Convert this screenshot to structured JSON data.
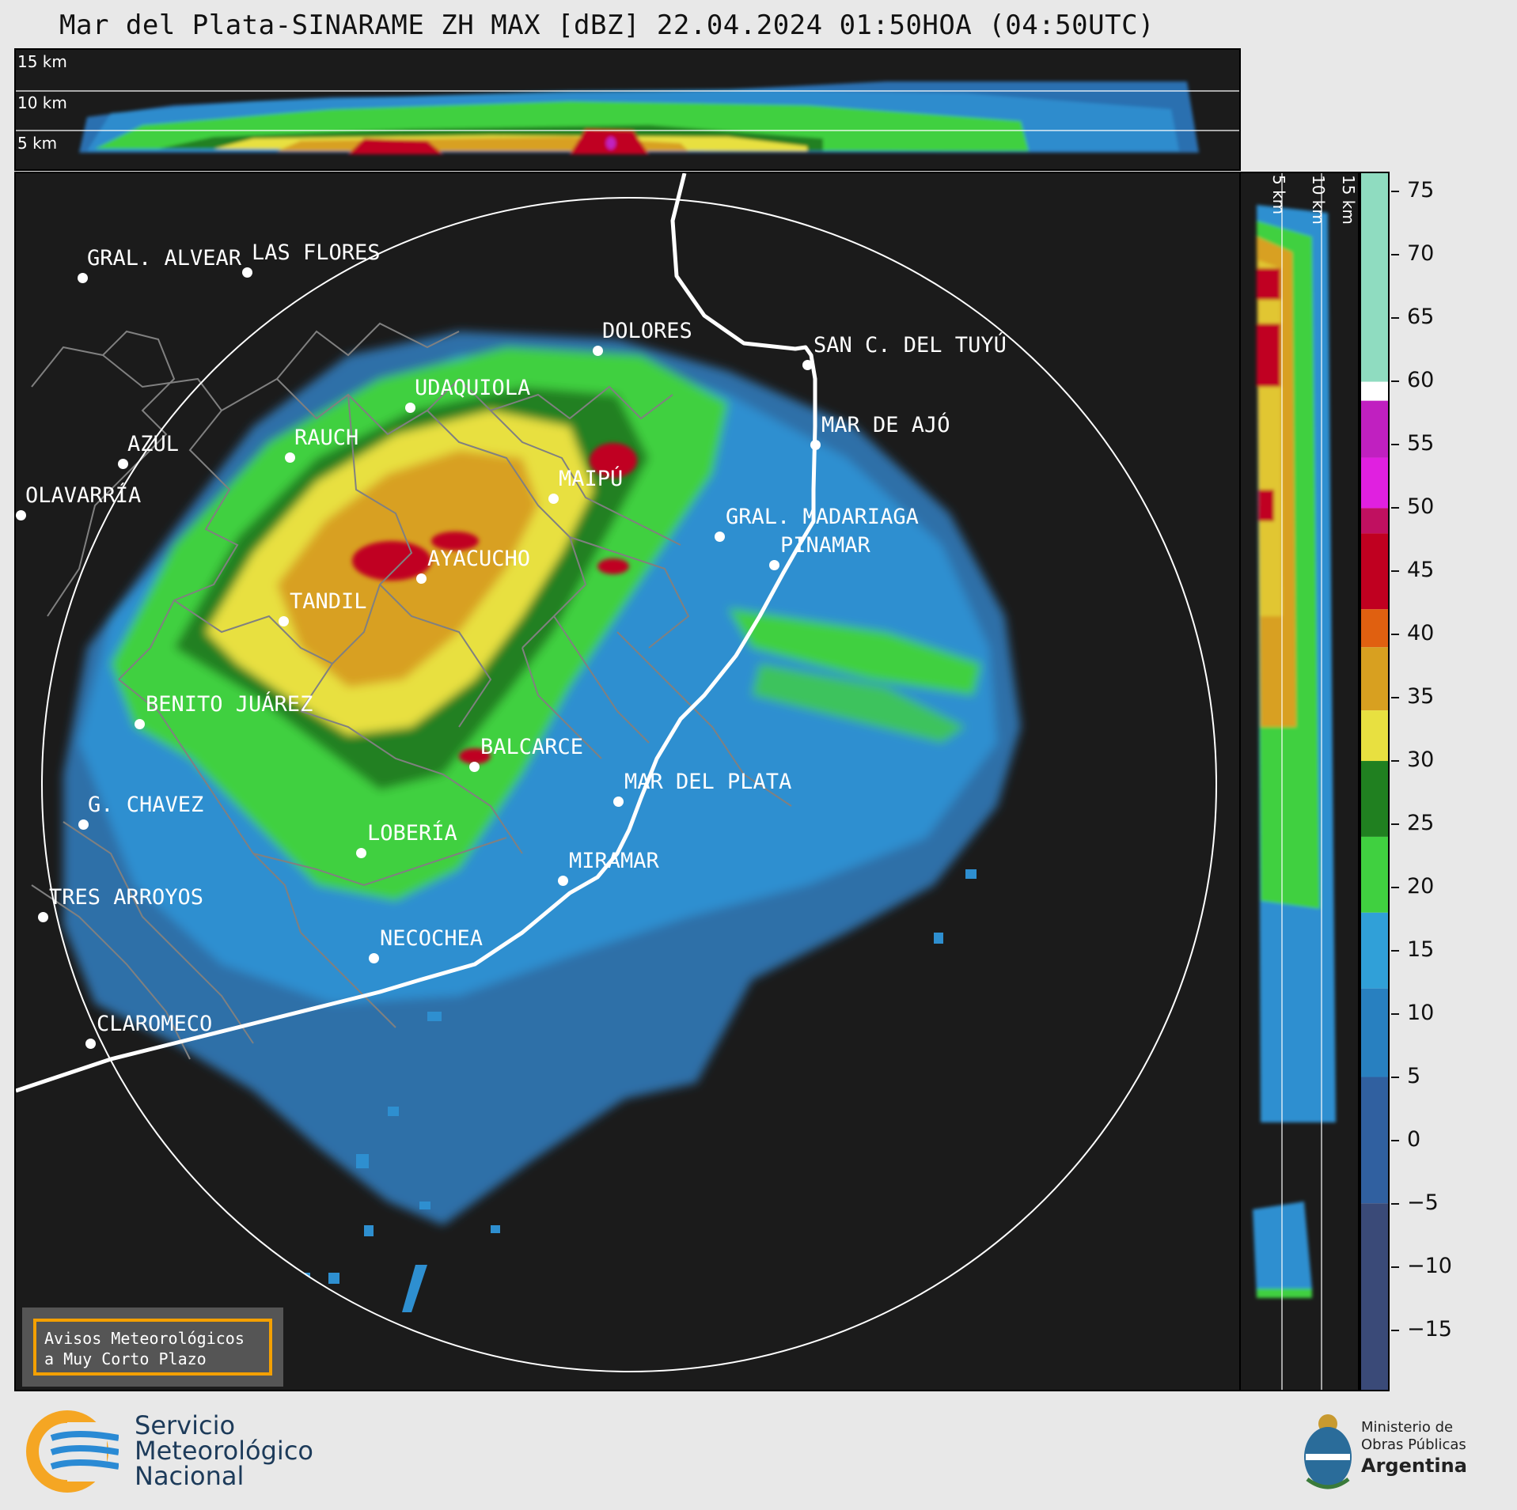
{
  "title": "Mar del Plata-SINARAME ZH MAX [dBZ] 22.04.2024 01:50HOA (04:50UTC)",
  "top_xs_labels": [
    "15 km",
    "10 km",
    "5 km"
  ],
  "right_xs_labels": [
    "5 km",
    "10 km",
    "15 km"
  ],
  "colorbar": {
    "ticks": [
      "75",
      "70",
      "65",
      "60",
      "55",
      "50",
      "45",
      "40",
      "35",
      "30",
      "25",
      "20",
      "15",
      "10",
      "5",
      "0",
      "−5",
      "−10",
      "−15"
    ],
    "min": -20,
    "max": 76.5,
    "unit": "dBZ",
    "bands": [
      {
        "from": 60,
        "to": 76.5,
        "color": "#8fdcc0"
      },
      {
        "from": 58.5,
        "to": 60,
        "color": "#ffffff"
      },
      {
        "from": 54,
        "to": 58.5,
        "color": "#c020c0"
      },
      {
        "from": 50,
        "to": 54,
        "color": "#e020e0"
      },
      {
        "from": 48,
        "to": 50,
        "color": "#c01060"
      },
      {
        "from": 42,
        "to": 48,
        "color": "#c00020"
      },
      {
        "from": 39,
        "to": 42,
        "color": "#e06010"
      },
      {
        "from": 34,
        "to": 39,
        "color": "#d8a020"
      },
      {
        "from": 30,
        "to": 34,
        "color": "#e8e040"
      },
      {
        "from": 24,
        "to": 30,
        "color": "#208020"
      },
      {
        "from": 18,
        "to": 24,
        "color": "#40d040"
      },
      {
        "from": 12,
        "to": 18,
        "color": "#30a0d8"
      },
      {
        "from": 5,
        "to": 12,
        "color": "#2880c0"
      },
      {
        "from": -5,
        "to": 5,
        "color": "#3060a0"
      },
      {
        "from": -20,
        "to": -5,
        "color": "#3a4a78"
      }
    ]
  },
  "cities": [
    {
      "name": "GRAL. ALVEAR"
    },
    {
      "name": "LAS FLORES"
    },
    {
      "name": "DOLORES"
    },
    {
      "name": "SAN C. DEL TUYÚ"
    },
    {
      "name": "UDAQUIOLA"
    },
    {
      "name": "MAR DE AJÓ"
    },
    {
      "name": "AZUL"
    },
    {
      "name": "RAUCH"
    },
    {
      "name": "OLAVARRÍA"
    },
    {
      "name": "MAIPÚ"
    },
    {
      "name": "GRAL. MADARIAGA"
    },
    {
      "name": "PINAMAR"
    },
    {
      "name": "AYACUCHO"
    },
    {
      "name": "TANDIL"
    },
    {
      "name": "BENITO JUÁREZ"
    },
    {
      "name": "BALCARCE"
    },
    {
      "name": "MAR DEL PLATA"
    },
    {
      "name": "G. CHAVEZ"
    },
    {
      "name": "LOBERÍA"
    },
    {
      "name": "MIRAMAR"
    },
    {
      "name": "TRES ARROYOS"
    },
    {
      "name": "NECOCHEA"
    },
    {
      "name": "CLAROMECO"
    }
  ],
  "avisos": {
    "line1": "Avisos Meteorológicos",
    "line2": "a Muy Corto Plazo"
  },
  "smn_logo": {
    "line1": "Servicio",
    "line2": "Meteorológico",
    "line3": "Nacional"
  },
  "ministry_logo": {
    "line1": "Ministerio de",
    "line2": "Obras Públicas",
    "line3": "Argentina"
  }
}
